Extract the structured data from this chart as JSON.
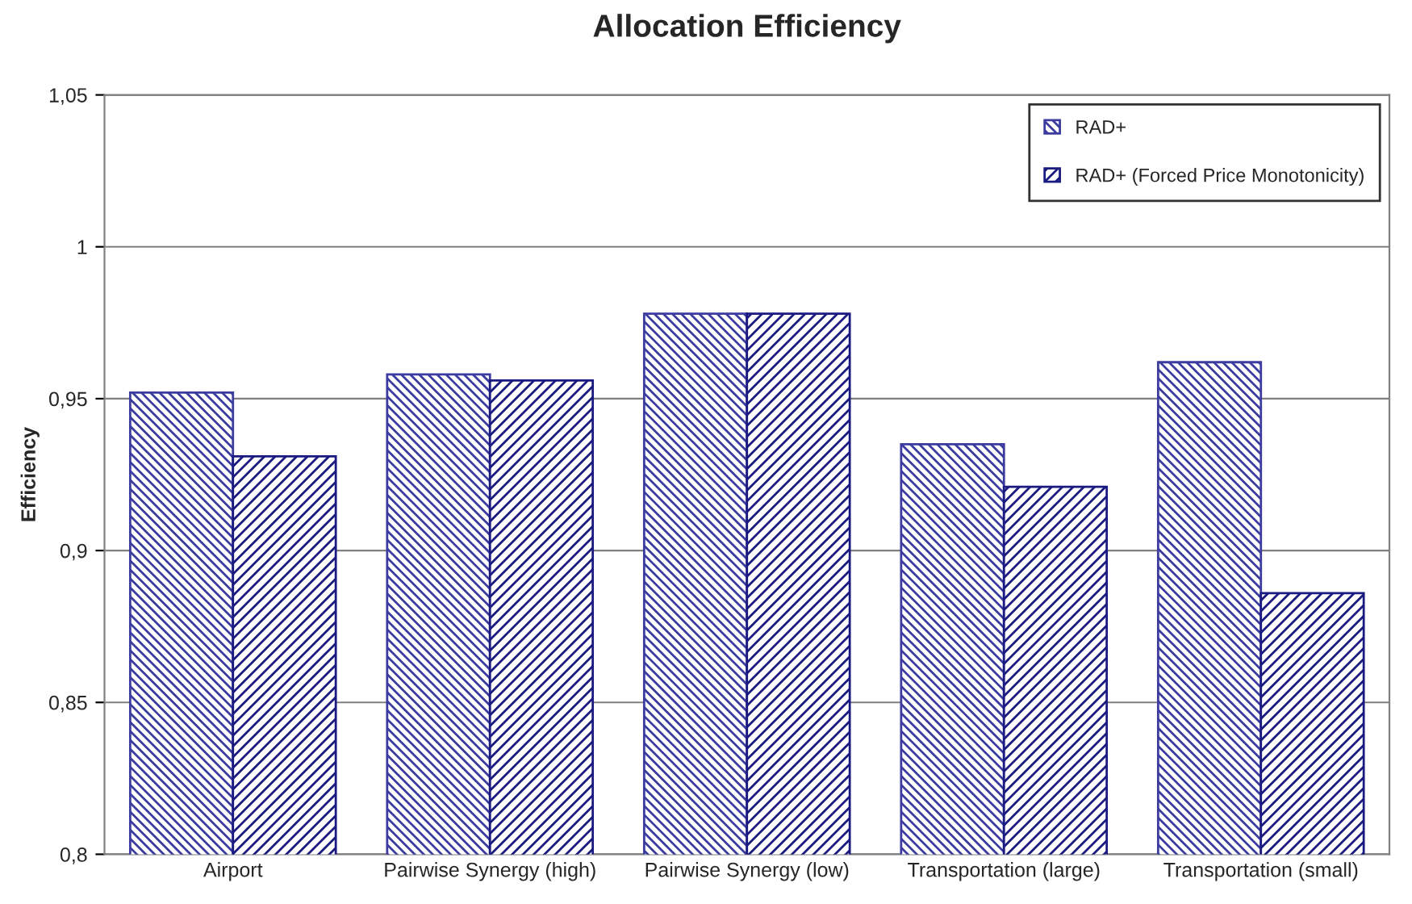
{
  "chart_data": {
    "type": "bar",
    "title": "Allocation Efficiency",
    "ylabel": "Efficiency",
    "categories": [
      "Airport",
      "Pairwise Synergy (high)",
      "Pairwise Synergy (low)",
      "Transportation (large)",
      "Transportation (small)"
    ],
    "series": [
      {
        "name": "RAD+",
        "color": "#3c3ca0",
        "values": [
          0.952,
          0.958,
          0.978,
          0.935,
          0.962
        ]
      },
      {
        "name": "RAD+ (Forced Price Monotonicity)",
        "color": "#1a1a80",
        "values": [
          0.931,
          0.956,
          0.978,
          0.921,
          0.886
        ]
      }
    ],
    "ylim": [
      0.8,
      1.05
    ],
    "yticks": [
      {
        "value": 0.8,
        "label": "0,8"
      },
      {
        "value": 0.85,
        "label": "0,85"
      },
      {
        "value": 0.9,
        "label": "0,9"
      },
      {
        "value": 0.95,
        "label": "0,95"
      },
      1,
      {
        "value": 1.05,
        "label": "1,05"
      }
    ],
    "grid": "y",
    "legend": "top right"
  }
}
